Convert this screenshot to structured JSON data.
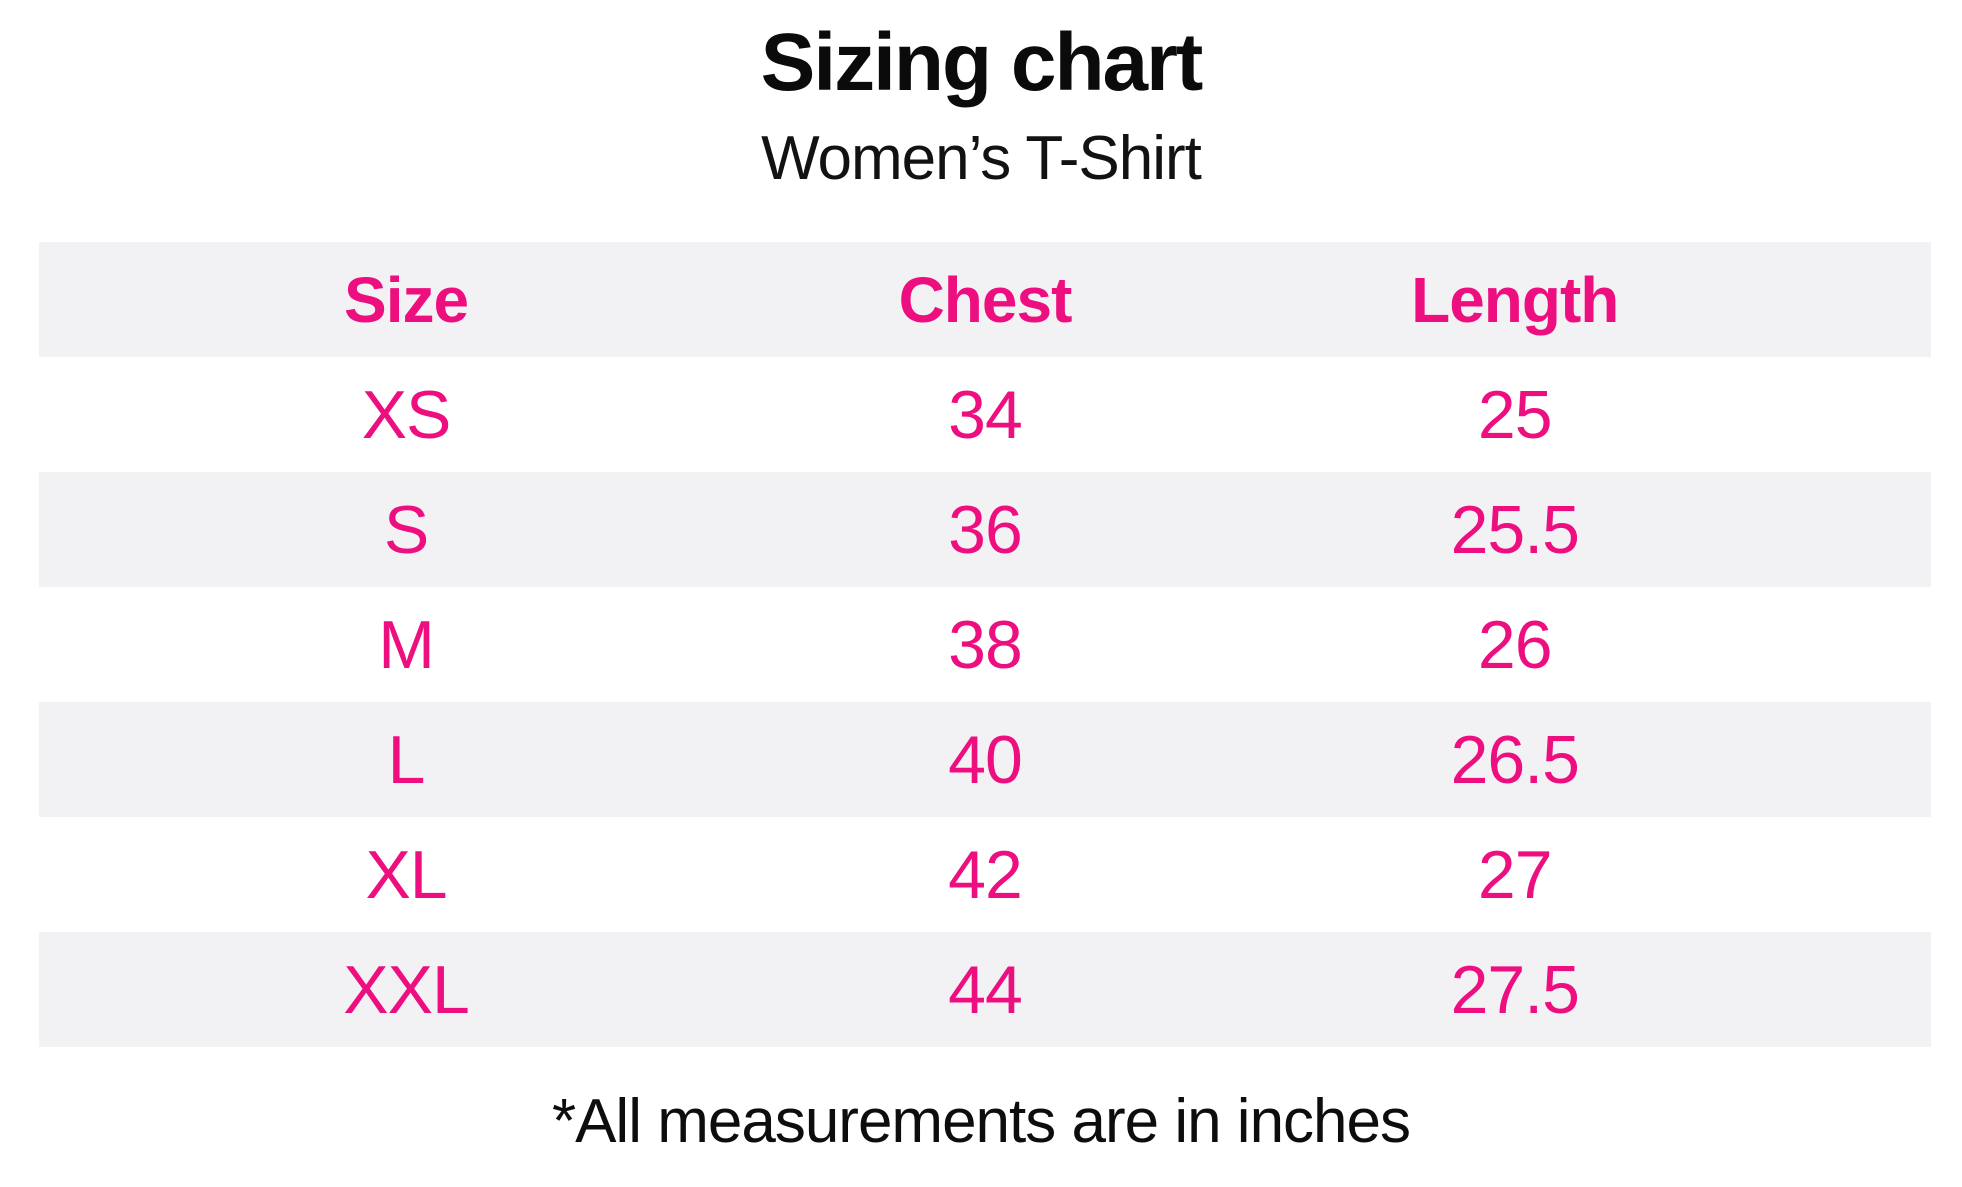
{
  "header": {
    "title": "Sizing chart",
    "subtitle": "Women’s T-Shirt"
  },
  "chart_data": {
    "type": "table",
    "title": "Sizing chart",
    "subtitle": "Women’s T-Shirt",
    "columns": [
      "Size",
      "Chest",
      "Length"
    ],
    "rows": [
      [
        "XS",
        "34",
        "25"
      ],
      [
        "S",
        "36",
        "25.5"
      ],
      [
        "M",
        "38",
        "26"
      ],
      [
        "L",
        "40",
        "26.5"
      ],
      [
        "XL",
        "42",
        "27"
      ],
      [
        "XXL",
        "44",
        "27.5"
      ]
    ],
    "units": "inches",
    "note": "*All measurements are in inches"
  },
  "footer": {
    "note": "*All measurements are in inches"
  },
  "colors": {
    "accent_pink": "#ed0f7f",
    "row_stripe_gray": "#f2f2f4",
    "text_black": "#0d0d0d",
    "background": "#ffffff"
  }
}
